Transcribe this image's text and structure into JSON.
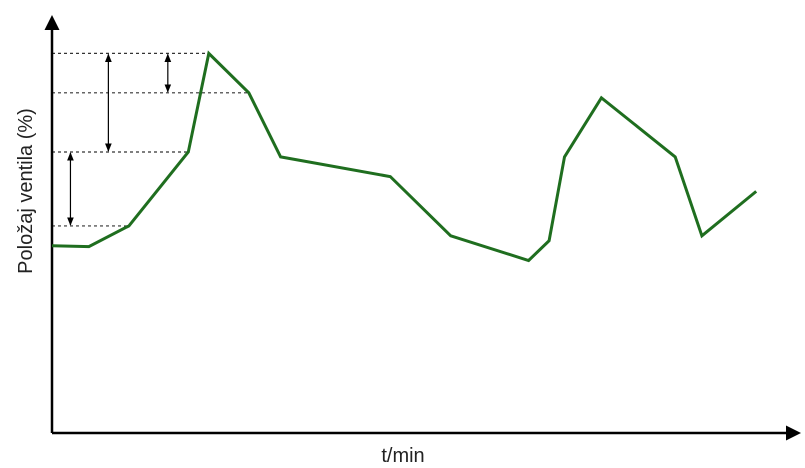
{
  "chart_data": {
    "type": "line",
    "xlabel": "t/min",
    "ylabel": "Položaj ventila (%)",
    "series": [
      {
        "color": "#1f6e1f",
        "points": [
          [
            0,
            38
          ],
          [
            3.6,
            37.8
          ],
          [
            7.5,
            42
          ],
          [
            13.3,
            57
          ],
          [
            15.3,
            77
          ],
          [
            19.2,
            69
          ],
          [
            22.3,
            56
          ],
          [
            33,
            52
          ],
          [
            38.9,
            40
          ],
          [
            46.5,
            35
          ],
          [
            48.5,
            39
          ],
          [
            50,
            56
          ],
          [
            53.6,
            68
          ],
          [
            60.8,
            56
          ],
          [
            63.4,
            40
          ],
          [
            68.7,
            49
          ]
        ]
      }
    ],
    "guides": {
      "levels": [
        77,
        69,
        57,
        42
      ]
    },
    "axes": {
      "arrowheads": true,
      "ticks": false,
      "grid": false
    }
  }
}
